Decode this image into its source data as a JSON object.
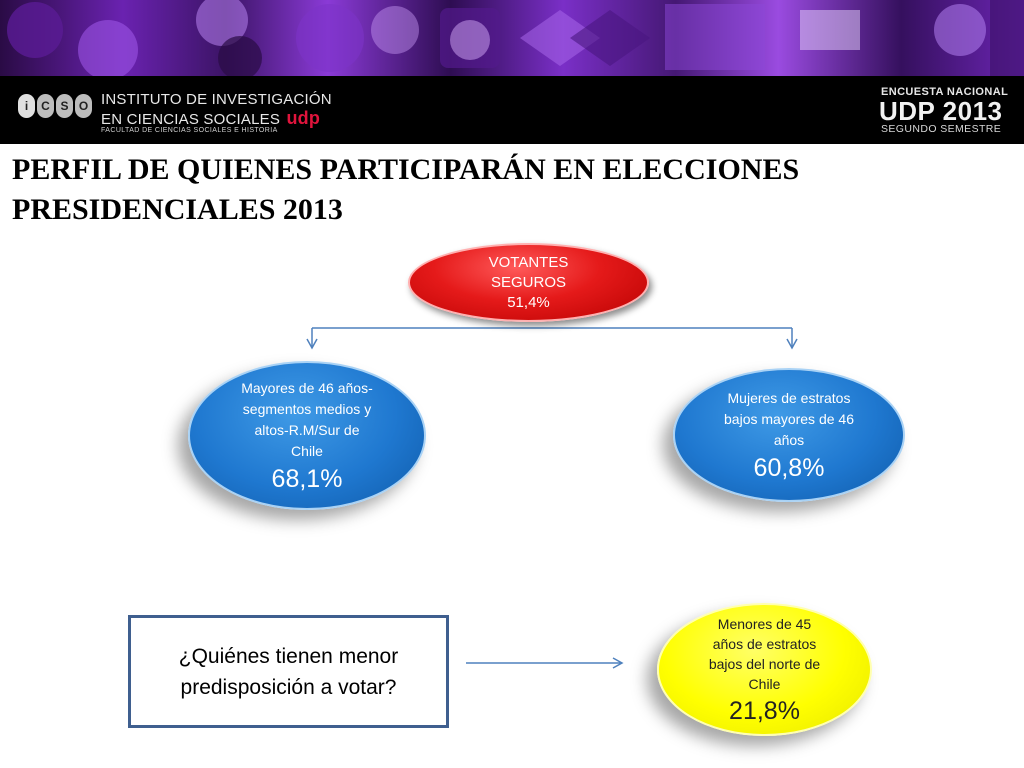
{
  "header": {
    "logo_letters": [
      "i",
      "C",
      "S",
      "O"
    ],
    "institute_line1": "INSTITUTO DE INVESTIGACIÓN",
    "institute_line2": "EN CIENCIAS SOCIALES",
    "udp_mark": "udp",
    "faculty": "FACULTAD DE CIENCIAS SOCIALES E HISTORIA",
    "survey_label": "ENCUESTA NACIONAL",
    "survey_name": "UDP 2013",
    "survey_semester": "SEGUNDO SEMESTRE"
  },
  "slide": {
    "title_line1": "PERFIL DE QUIENES PARTICIPARÁN EN ELECCIONES",
    "title_line2": "PRESIDENCIALES 2013"
  },
  "diagram": {
    "top_node": {
      "lines": [
        "VOTANTES",
        "SEGUROS",
        "51,4%"
      ]
    },
    "left_node": {
      "lines": [
        "Mayores de 46 años-",
        "segmentos medios y",
        "altos-R.M/Sur de",
        "Chile"
      ],
      "value": "68,1%"
    },
    "right_node": {
      "lines": [
        "Mujeres de estratos",
        "bajos mayores de 46",
        "años"
      ],
      "value": "60,8%"
    },
    "question": "¿Quiénes tienen menor predisposición a votar?",
    "bottom_node": {
      "lines": [
        "Menores de 45",
        "años de estratos",
        "bajos del norte de",
        "Chile"
      ],
      "value": "21,8%"
    }
  },
  "colors": {
    "top_node": "#e51a1a",
    "blue_nodes": "#1f78d0",
    "bottom_node": "#ffff00",
    "connectors": "#4f81bd",
    "question_border": "#3f5f8f"
  }
}
